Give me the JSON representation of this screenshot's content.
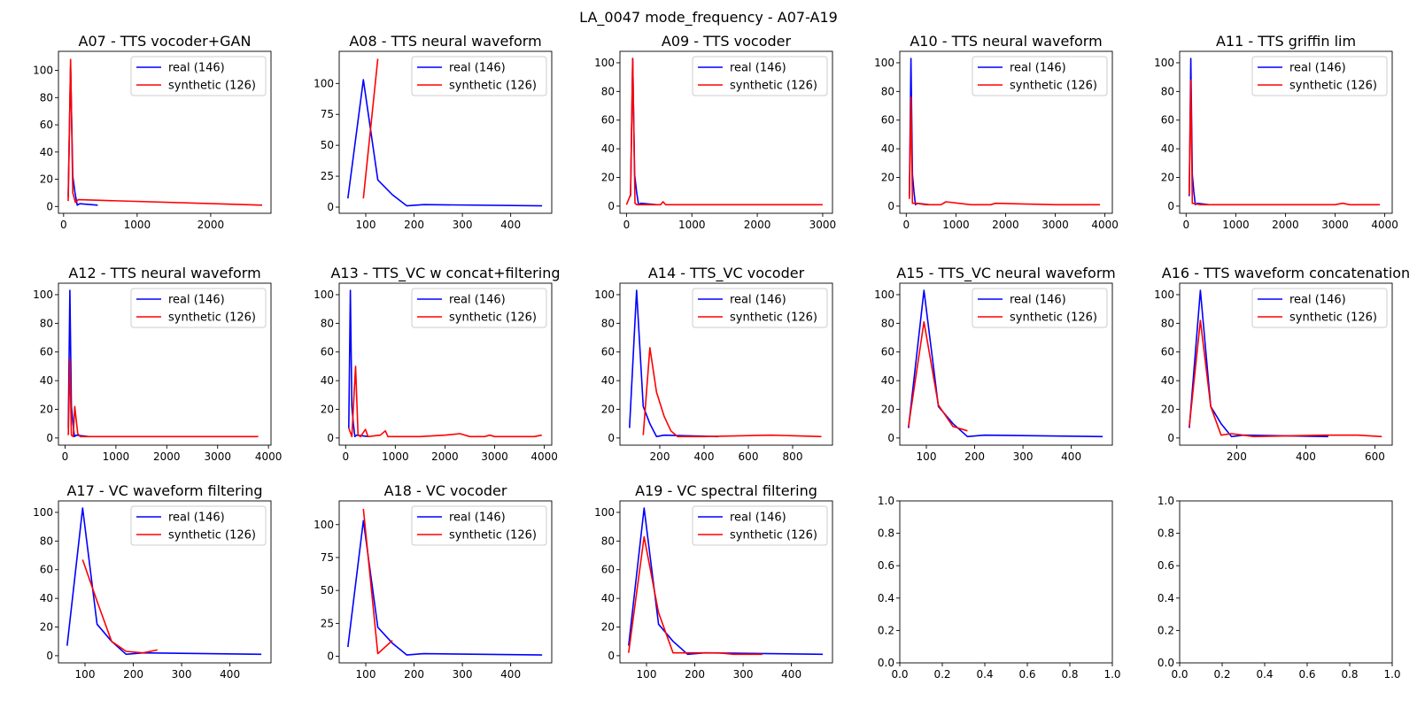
{
  "figure": {
    "suptitle": "LA_0047 mode_frequency - A07-A19"
  },
  "colors": {
    "real": "#0000ff",
    "synthetic": "#ff0000"
  },
  "chart_data": [
    {
      "type": "line",
      "title": "A07 - TTS vocoder+GAN",
      "xlim": [
        -70,
        2820
      ],
      "ylim": [
        -5,
        114
      ],
      "xticks": [
        0,
        1000,
        2000
      ],
      "yticks": [
        0,
        20,
        40,
        60,
        80,
        100
      ],
      "legend_placement": "top-right",
      "series": [
        {
          "name": "real (146)",
          "color": "#0000ff",
          "x": [
            63,
            95,
            125,
            155,
            185,
            220,
            465
          ],
          "y": [
            7,
            103,
            22,
            10,
            1,
            2,
            1
          ]
        },
        {
          "name": "synthetic (126)",
          "color": "#ff0000",
          "x": [
            63,
            95,
            125,
            160,
            200,
            2700
          ],
          "y": [
            4,
            108,
            10,
            3,
            5,
            1
          ]
        }
      ]
    },
    {
      "type": "line",
      "title": "A08 - TTS neural waveform",
      "xlim": [
        45,
        485
      ],
      "ylim": [
        -5,
        126
      ],
      "xticks": [
        100,
        200,
        300,
        400
      ],
      "yticks": [
        0,
        25,
        50,
        75,
        100
      ],
      "legend_placement": "top-right",
      "series": [
        {
          "name": "real (146)",
          "color": "#0000ff",
          "x": [
            63,
            95,
            125,
            155,
            185,
            220,
            465
          ],
          "y": [
            7,
            103,
            22,
            10,
            1,
            2,
            1
          ]
        },
        {
          "name": "synthetic (126)",
          "color": "#ff0000",
          "x": [
            95,
            125
          ],
          "y": [
            7,
            120
          ]
        }
      ]
    },
    {
      "type": "line",
      "title": "A09 - TTS vocoder",
      "xlim": [
        -100,
        3150
      ],
      "ylim": [
        -5,
        108
      ],
      "xticks": [
        0,
        1000,
        2000,
        3000
      ],
      "yticks": [
        0,
        20,
        40,
        60,
        80,
        100
      ],
      "legend_placement": "top-right",
      "series": [
        {
          "name": "real (146)",
          "color": "#0000ff",
          "x": [
            63,
            95,
            125,
            155,
            185,
            220,
            465
          ],
          "y": [
            7,
            103,
            22,
            10,
            1,
            2,
            1
          ]
        },
        {
          "name": "synthetic (126)",
          "color": "#ff0000",
          "x": [
            0,
            63,
            95,
            130,
            160,
            520,
            560,
            600,
            1000,
            2000,
            3000
          ],
          "y": [
            1,
            8,
            103,
            2,
            1,
            1,
            3,
            1,
            1,
            1,
            1
          ]
        }
      ]
    },
    {
      "type": "line",
      "title": "A10 - TTS neural waveform",
      "xlim": [
        -130,
        4150
      ],
      "ylim": [
        -5,
        108
      ],
      "xticks": [
        0,
        1000,
        2000,
        3000,
        4000
      ],
      "yticks": [
        0,
        20,
        40,
        60,
        80,
        100
      ],
      "legend_placement": "top-right",
      "series": [
        {
          "name": "real (146)",
          "color": "#0000ff",
          "x": [
            63,
            95,
            125,
            155,
            185,
            220,
            465
          ],
          "y": [
            7,
            103,
            22,
            10,
            1,
            2,
            1
          ]
        },
        {
          "name": "synthetic (126)",
          "color": "#ff0000",
          "x": [
            63,
            95,
            125,
            200,
            400,
            700,
            800,
            1300,
            1700,
            1800,
            3000,
            3900
          ],
          "y": [
            5,
            76,
            2,
            2,
            1,
            1,
            3,
            1,
            1,
            2,
            1,
            1
          ]
        }
      ]
    },
    {
      "type": "line",
      "title": "A11 - TTS griffin lim",
      "xlim": [
        -130,
        4150
      ],
      "ylim": [
        -5,
        108
      ],
      "xticks": [
        0,
        1000,
        2000,
        3000,
        4000
      ],
      "yticks": [
        0,
        20,
        40,
        60,
        80,
        100
      ],
      "legend_placement": "top-right",
      "series": [
        {
          "name": "real (146)",
          "color": "#0000ff",
          "x": [
            63,
            95,
            125,
            155,
            185,
            220,
            465
          ],
          "y": [
            7,
            103,
            22,
            10,
            1,
            2,
            1
          ]
        },
        {
          "name": "synthetic (126)",
          "color": "#ff0000",
          "x": [
            63,
            95,
            125,
            300,
            3000,
            3150,
            3300,
            3900
          ],
          "y": [
            8,
            88,
            2,
            1,
            1,
            2,
            1,
            1
          ]
        }
      ]
    },
    {
      "type": "line",
      "title": "A12 - TTS neural waveform",
      "xlim": [
        -130,
        4050
      ],
      "ylim": [
        -5,
        108
      ],
      "xticks": [
        0,
        1000,
        2000,
        3000,
        4000
      ],
      "yticks": [
        0,
        20,
        40,
        60,
        80,
        100
      ],
      "legend_placement": "top-right",
      "series": [
        {
          "name": "real (146)",
          "color": "#0000ff",
          "x": [
            63,
            95,
            125,
            155,
            185,
            220,
            465
          ],
          "y": [
            7,
            103,
            22,
            10,
            1,
            2,
            1
          ]
        },
        {
          "name": "synthetic (126)",
          "color": "#ff0000",
          "x": [
            63,
            95,
            125,
            160,
            190,
            250,
            300,
            500,
            3800
          ],
          "y": [
            2,
            55,
            2,
            1,
            22,
            3,
            1,
            1,
            1
          ]
        }
      ]
    },
    {
      "type": "line",
      "title": "A13 - TTS_VC w concat+filtering",
      "xlim": [
        -130,
        4150
      ],
      "ylim": [
        -5,
        108
      ],
      "xticks": [
        0,
        1000,
        2000,
        3000,
        4000
      ],
      "yticks": [
        0,
        20,
        40,
        60,
        80,
        100
      ],
      "legend_placement": "top-right",
      "series": [
        {
          "name": "real (146)",
          "color": "#0000ff",
          "x": [
            63,
            95,
            125,
            155,
            185,
            220,
            465
          ],
          "y": [
            7,
            103,
            22,
            10,
            1,
            2,
            1
          ]
        },
        {
          "name": "synthetic (126)",
          "color": "#ff0000",
          "x": [
            63,
            125,
            200,
            250,
            300,
            400,
            450,
            700,
            800,
            850,
            1000,
            1500,
            2000,
            2300,
            2500,
            2800,
            2900,
            3000,
            3800,
            3950
          ],
          "y": [
            7,
            1,
            50,
            2,
            1,
            6,
            1,
            2,
            5,
            1,
            1,
            1,
            2,
            3,
            1,
            1,
            2,
            1,
            1,
            2
          ]
        }
      ]
    },
    {
      "type": "line",
      "title": "A14 - TTS_VC vocoder",
      "xlim": [
        20,
        980
      ],
      "ylim": [
        -5,
        108
      ],
      "xticks": [
        200,
        400,
        600,
        800
      ],
      "yticks": [
        0,
        20,
        40,
        60,
        80,
        100
      ],
      "legend_placement": "top-right",
      "series": [
        {
          "name": "real (146)",
          "color": "#0000ff",
          "x": [
            63,
            95,
            125,
            155,
            185,
            220,
            465
          ],
          "y": [
            7,
            103,
            22,
            10,
            1,
            2,
            1
          ]
        },
        {
          "name": "synthetic (126)",
          "color": "#ff0000",
          "x": [
            125,
            155,
            185,
            220,
            250,
            280,
            400,
            700,
            930
          ],
          "y": [
            2,
            63,
            32,
            15,
            5,
            1,
            1,
            2,
            1
          ]
        }
      ]
    },
    {
      "type": "line",
      "title": "A15 - TTS_VC neural waveform",
      "xlim": [
        45,
        485
      ],
      "ylim": [
        -5,
        108
      ],
      "xticks": [
        100,
        200,
        300,
        400
      ],
      "yticks": [
        0,
        20,
        40,
        60,
        80,
        100
      ],
      "legend_placement": "top-right",
      "series": [
        {
          "name": "real (146)",
          "color": "#0000ff",
          "x": [
            63,
            95,
            125,
            155,
            185,
            220,
            465
          ],
          "y": [
            7,
            103,
            22,
            10,
            1,
            2,
            1
          ]
        },
        {
          "name": "synthetic (126)",
          "color": "#ff0000",
          "x": [
            63,
            95,
            125,
            155,
            185
          ],
          "y": [
            8,
            81,
            23,
            8,
            5
          ]
        }
      ]
    },
    {
      "type": "line",
      "title": "A16 - TTS waveform concatenation",
      "xlim": [
        35,
        650
      ],
      "ylim": [
        -5,
        108
      ],
      "xticks": [
        200,
        400,
        600
      ],
      "yticks": [
        0,
        20,
        40,
        60,
        80,
        100
      ],
      "legend_placement": "top-right",
      "series": [
        {
          "name": "real (146)",
          "color": "#0000ff",
          "x": [
            63,
            95,
            125,
            155,
            185,
            220,
            465
          ],
          "y": [
            7,
            103,
            22,
            10,
            1,
            2,
            1
          ]
        },
        {
          "name": "synthetic (126)",
          "color": "#ff0000",
          "x": [
            63,
            95,
            125,
            155,
            185,
            250,
            450,
            550,
            620
          ],
          "y": [
            8,
            82,
            22,
            2,
            3,
            1,
            2,
            2,
            1
          ]
        }
      ]
    },
    {
      "type": "line",
      "title": "A17 - VC waveform filtering",
      "xlim": [
        45,
        485
      ],
      "ylim": [
        -5,
        108
      ],
      "xticks": [
        100,
        200,
        300,
        400
      ],
      "yticks": [
        0,
        20,
        40,
        60,
        80,
        100
      ],
      "legend_placement": "top-right",
      "series": [
        {
          "name": "real (146)",
          "color": "#0000ff",
          "x": [
            63,
            95,
            125,
            155,
            185,
            220,
            465
          ],
          "y": [
            7,
            103,
            22,
            10,
            1,
            2,
            1
          ]
        },
        {
          "name": "synthetic (126)",
          "color": "#ff0000",
          "x": [
            95,
            125,
            155,
            185,
            220,
            250
          ],
          "y": [
            67,
            38,
            10,
            3,
            2,
            4
          ]
        }
      ]
    },
    {
      "type": "line",
      "title": "A18 - VC vocoder",
      "xlim": [
        45,
        485
      ],
      "ylim": [
        -5,
        118
      ],
      "xticks": [
        100,
        200,
        300,
        400
      ],
      "yticks": [
        0,
        25,
        50,
        75,
        100
      ],
      "legend_placement": "top-right",
      "series": [
        {
          "name": "real (146)",
          "color": "#0000ff",
          "x": [
            63,
            95,
            125,
            155,
            185,
            220,
            465
          ],
          "y": [
            7,
            103,
            22,
            10,
            1,
            2,
            1
          ]
        },
        {
          "name": "synthetic (126)",
          "color": "#ff0000",
          "x": [
            95,
            125,
            155
          ],
          "y": [
            112,
            2,
            12
          ]
        }
      ]
    },
    {
      "type": "line",
      "title": "A19 - VC spectral filtering",
      "xlim": [
        45,
        485
      ],
      "ylim": [
        -5,
        108
      ],
      "xticks": [
        100,
        200,
        300,
        400
      ],
      "yticks": [
        0,
        20,
        40,
        60,
        80,
        100
      ],
      "legend_placement": "top-right",
      "series": [
        {
          "name": "real (146)",
          "color": "#0000ff",
          "x": [
            63,
            95,
            125,
            155,
            185,
            220,
            465
          ],
          "y": [
            7,
            103,
            22,
            10,
            1,
            2,
            1
          ]
        },
        {
          "name": "synthetic (126)",
          "color": "#ff0000",
          "x": [
            63,
            95,
            125,
            155,
            185,
            250,
            280,
            340
          ],
          "y": [
            2,
            83,
            30,
            2,
            2,
            2,
            1,
            1
          ]
        }
      ]
    },
    {
      "type": "line",
      "title": "",
      "xlim": [
        0,
        1
      ],
      "ylim": [
        0,
        1
      ],
      "xticks": [
        0.0,
        0.2,
        0.4,
        0.6,
        0.8,
        1.0
      ],
      "yticks": [
        0.0,
        0.2,
        0.4,
        0.6,
        0.8,
        1.0
      ],
      "tick_format": "fixed1",
      "series": []
    },
    {
      "type": "line",
      "title": "",
      "xlim": [
        0,
        1
      ],
      "ylim": [
        0,
        1
      ],
      "xticks": [
        0.0,
        0.2,
        0.4,
        0.6,
        0.8,
        1.0
      ],
      "yticks": [
        0.0,
        0.2,
        0.4,
        0.6,
        0.8,
        1.0
      ],
      "tick_format": "fixed1",
      "series": []
    }
  ]
}
